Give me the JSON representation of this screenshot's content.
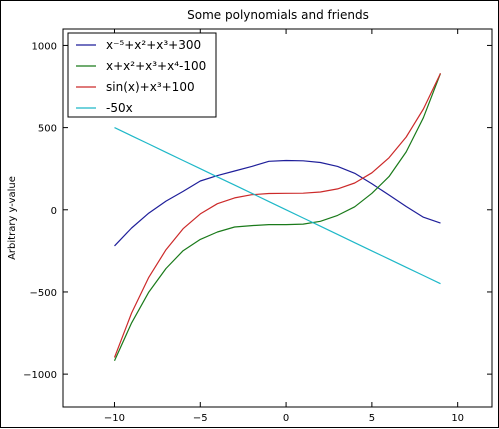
{
  "chart_data": {
    "type": "line",
    "title": "Some polynomials and friends",
    "ylabel": "Arbitrary y-value",
    "xlabel": "",
    "xlim": [
      -13,
      12
    ],
    "ylim": [
      -1200,
      1100
    ],
    "xticks": [
      -10,
      -5,
      0,
      5,
      10
    ],
    "yticks": [
      -1000,
      -500,
      0,
      500,
      1000
    ],
    "grid": false,
    "legend_position": "top-left",
    "x": [
      -10,
      -9,
      -8,
      -7,
      -6,
      -5,
      -4,
      -3,
      -2,
      -1,
      0,
      1,
      2,
      3,
      4,
      5,
      6,
      7,
      8,
      9
    ],
    "series": [
      {
        "name": "x⁻⁵+x²+x³+300",
        "color": "#1f1f9a",
        "values": [
          -220,
          -111,
          -20,
          53,
          112,
          175,
          208,
          236,
          264,
          295,
          300,
          298,
          288,
          264,
          222,
          158,
          90,
          20,
          -45,
          -81
        ]
      },
      {
        "name": "x+x²+x³+x⁴-100",
        "color": "#1a7a1a",
        "values": [
          -919,
          -688,
          -501,
          -357,
          -249,
          -180,
          -135,
          -105,
          -96,
          -90,
          -90,
          -87,
          -70,
          -34,
          18,
          100,
          202,
          352,
          560,
          830
        ]
      },
      {
        "name": "sin(x)+x³+100",
        "color": "#cc2a2a",
        "values": [
          -899,
          -628,
          -411,
          -243,
          -115,
          -25,
          37,
          72,
          92,
          99,
          100,
          101,
          108,
          127,
          163,
          225,
          316,
          443,
          613,
          830
        ]
      },
      {
        "name": "-50x",
        "color": "#1fb8c8",
        "values": [
          500,
          450,
          400,
          350,
          300,
          250,
          200,
          150,
          100,
          50,
          0,
          -50,
          -100,
          -150,
          -200,
          -250,
          -300,
          -350,
          -400,
          -450
        ]
      }
    ]
  }
}
